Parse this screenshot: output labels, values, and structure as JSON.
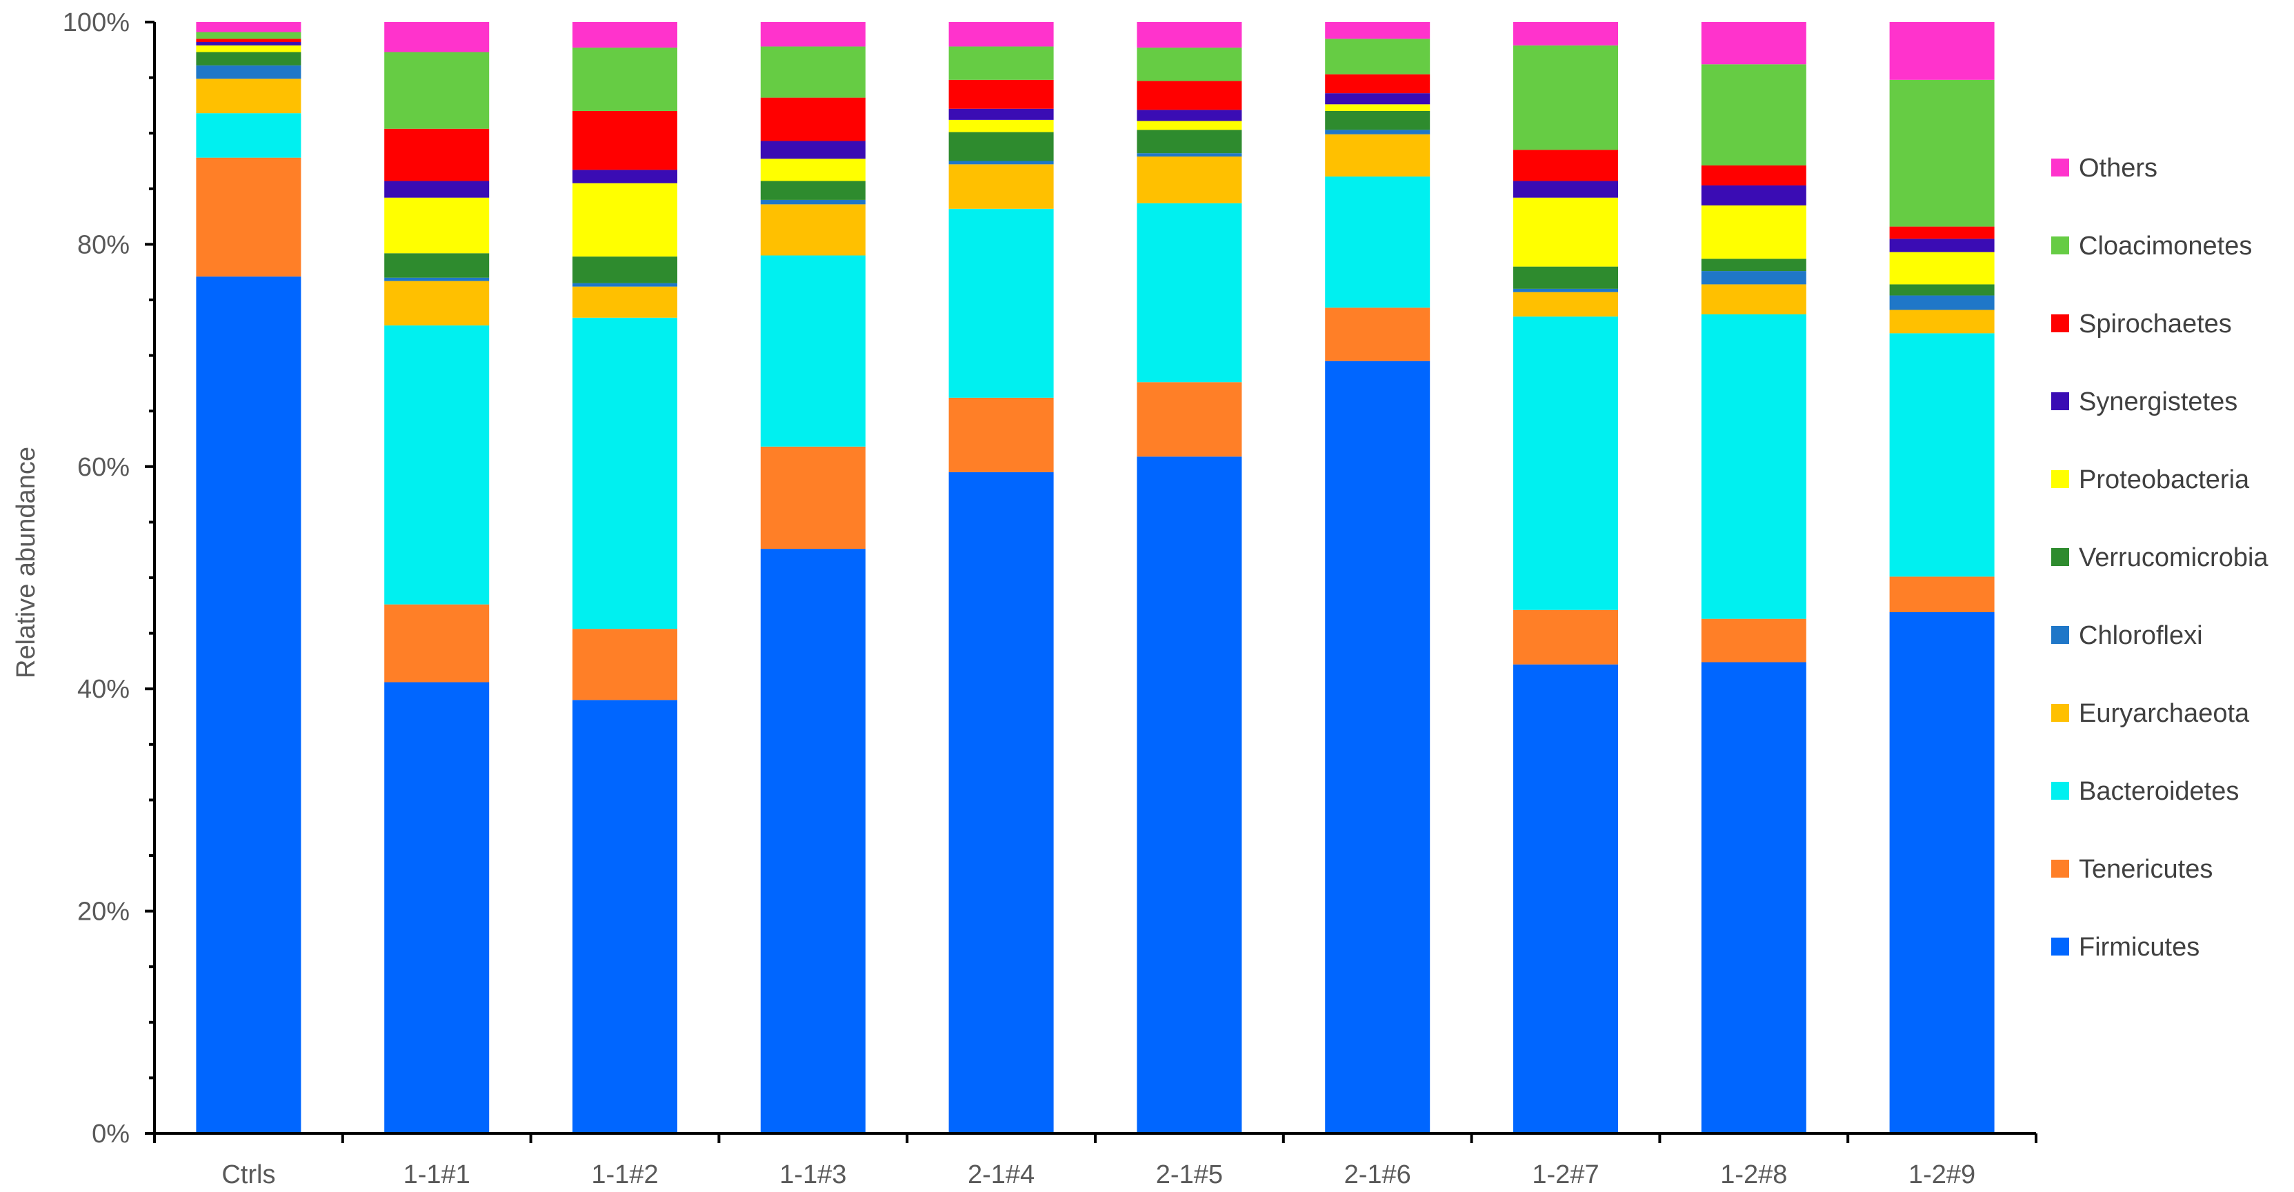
{
  "chart_data": {
    "type": "bar",
    "stacked": true,
    "normalized": true,
    "title": "",
    "xlabel": "",
    "ylabel": "Relative abundance",
    "ylim": [
      0,
      100
    ],
    "y_ticks": [
      "0%",
      "20%",
      "40%",
      "60%",
      "80%",
      "100%"
    ],
    "y_tick_values": [
      0,
      20,
      40,
      60,
      80,
      100
    ],
    "legend_position": "right",
    "categories": [
      "Ctrls",
      "1-1#1",
      "1-1#2",
      "1-1#3",
      "2-1#4",
      "2-1#5",
      "2-1#6",
      "1-2#7",
      "1-2#8",
      "1-2#9"
    ],
    "series": [
      {
        "name": "Firmicutes",
        "color": "#0066FF",
        "values": [
          77.1,
          40.6,
          39.0,
          52.6,
          59.5,
          60.9,
          69.5,
          42.2,
          42.4,
          46.9
        ]
      },
      {
        "name": "Tenericutes",
        "color": "#FF7F27",
        "values": [
          10.7,
          7.0,
          6.4,
          9.2,
          6.7,
          6.7,
          4.8,
          4.9,
          3.9,
          3.2
        ]
      },
      {
        "name": "Bacteroidetes",
        "color": "#00F0F0",
        "values": [
          4.0,
          25.1,
          28.0,
          17.2,
          17.0,
          16.1,
          11.8,
          26.4,
          27.4,
          21.9
        ]
      },
      {
        "name": "Euryarchaeota",
        "color": "#FFC000",
        "values": [
          3.1,
          4.0,
          2.8,
          4.6,
          4.0,
          4.2,
          3.8,
          2.2,
          2.7,
          2.1
        ]
      },
      {
        "name": "Chloroflexi",
        "color": "#1F77C8",
        "values": [
          1.2,
          0.3,
          0.3,
          0.4,
          0.3,
          0.3,
          0.4,
          0.3,
          1.2,
          1.3
        ]
      },
      {
        "name": "Verrucomicrobia",
        "color": "#2E8B2E",
        "values": [
          1.2,
          2.2,
          2.4,
          1.7,
          2.6,
          2.1,
          1.7,
          2.0,
          1.1,
          1.0
        ]
      },
      {
        "name": "Proteobacteria",
        "color": "#FFFF00",
        "values": [
          0.6,
          5.0,
          6.6,
          2.0,
          1.1,
          0.8,
          0.6,
          6.2,
          4.8,
          2.9
        ]
      },
      {
        "name": "Synergistetes",
        "color": "#3A0CB4",
        "values": [
          0.3,
          1.5,
          1.2,
          1.6,
          1.0,
          1.0,
          1.0,
          1.5,
          1.8,
          1.2
        ]
      },
      {
        "name": "Spirochaetes",
        "color": "#FF0000",
        "values": [
          0.3,
          4.7,
          5.3,
          3.9,
          2.6,
          2.6,
          1.7,
          2.8,
          1.8,
          1.1
        ]
      },
      {
        "name": "Cloacimonetes",
        "color": "#66CC44",
        "values": [
          0.6,
          6.9,
          5.7,
          4.6,
          3.0,
          3.0,
          3.2,
          9.4,
          9.1,
          13.2
        ]
      },
      {
        "name": "Others",
        "color": "#FF33CC",
        "values": [
          0.9,
          2.7,
          2.3,
          2.2,
          2.2,
          2.3,
          1.5,
          2.1,
          3.8,
          5.2
        ]
      }
    ],
    "legend_order": [
      "Others",
      "Cloacimonetes",
      "Spirochaetes",
      "Synergistetes",
      "Proteobacteria",
      "Verrucomicrobia",
      "Chloroflexi",
      "Euryarchaeota",
      "Bacteroidetes",
      "Tenericutes",
      "Firmicutes"
    ]
  }
}
